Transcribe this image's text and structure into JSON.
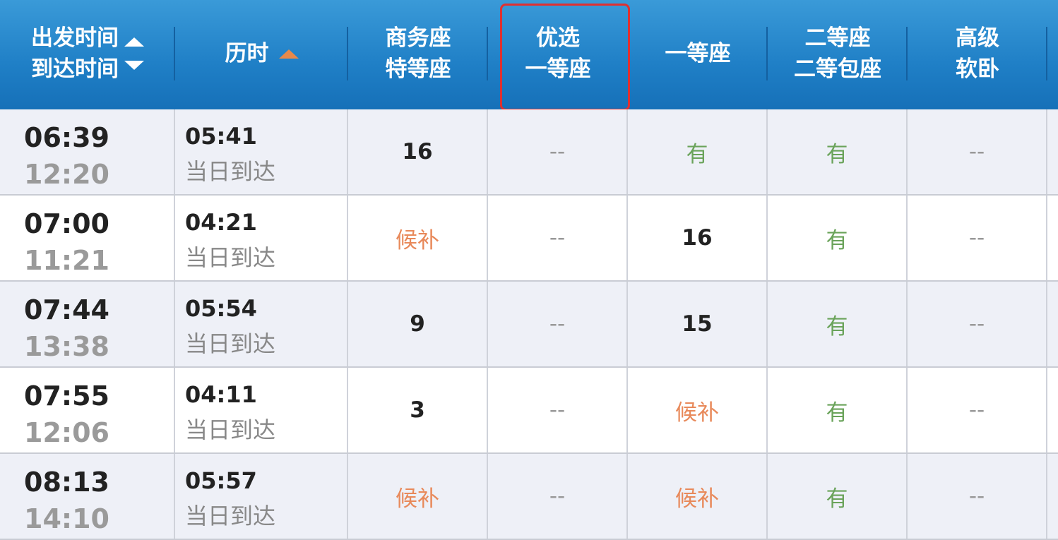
{
  "header": {
    "columns": [
      {
        "line1": "出发时间",
        "line2": "到达时间"
      },
      {
        "line1": "历时"
      },
      {
        "line1": "商务座",
        "line2": "特等座"
      },
      {
        "line1": "优选",
        "line2": "一等座"
      },
      {
        "line1": "一等座"
      },
      {
        "line1": "二等座",
        "line2": "二等包座"
      },
      {
        "line1": "高级",
        "line2": "软卧"
      }
    ],
    "highlighted_column": "优选一等座",
    "highlight_color": "#e03030",
    "header_color": "#1f7fc6",
    "active_sort_color": "#e8894a"
  },
  "rows": [
    {
      "depart": "06:39",
      "arrive": "12:20",
      "duration": "05:41",
      "arrival_day": "当日到达",
      "seats": [
        "16",
        "--",
        "有",
        "有",
        "--"
      ]
    },
    {
      "depart": "07:00",
      "arrive": "11:21",
      "duration": "04:21",
      "arrival_day": "当日到达",
      "seats": [
        "候补",
        "--",
        "16",
        "有",
        "--"
      ]
    },
    {
      "depart": "07:44",
      "arrive": "13:38",
      "duration": "05:54",
      "arrival_day": "当日到达",
      "seats": [
        "9",
        "--",
        "15",
        "有",
        "--"
      ]
    },
    {
      "depart": "07:55",
      "arrive": "12:06",
      "duration": "04:11",
      "arrival_day": "当日到达",
      "seats": [
        "3",
        "--",
        "候补",
        "有",
        "--"
      ]
    },
    {
      "depart": "08:13",
      "arrive": "14:10",
      "duration": "05:57",
      "arrival_day": "当日到达",
      "seats": [
        "候补",
        "--",
        "候补",
        "有",
        "--"
      ]
    }
  ]
}
